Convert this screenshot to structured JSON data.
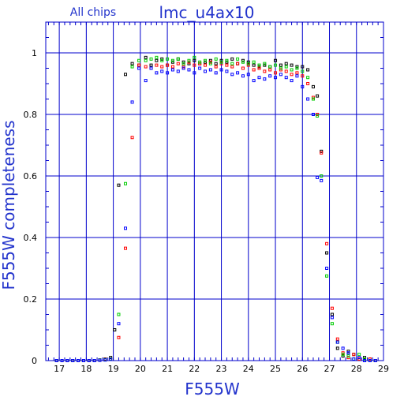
{
  "chart_data": {
    "type": "scatter",
    "title": "lmc_u4ax10",
    "subtitle": "All chips",
    "xlabel": "F555W",
    "ylabel": "F555W completeness",
    "xlim": [
      16.5,
      29
    ],
    "ylim": [
      0,
      1.1
    ],
    "xticks": [
      17,
      18,
      19,
      20,
      21,
      22,
      23,
      24,
      25,
      26,
      27,
      28,
      29
    ],
    "yticks": [
      0,
      0.2,
      0.4,
      0.6,
      0.8,
      1
    ],
    "ytick_labels": [
      "0",
      "0.2",
      "0.4",
      "0.6",
      "0.8",
      "1"
    ],
    "grid": true,
    "colors": {
      "axes": "#0000cc",
      "labels": "#2233cc"
    },
    "series": [
      {
        "color": "#000000",
        "points": [
          [
            16.9,
            0.0
          ],
          [
            17.1,
            0.0
          ],
          [
            17.3,
            0.0
          ],
          [
            17.5,
            0.0
          ],
          [
            17.7,
            0.0
          ],
          [
            17.9,
            0.0
          ],
          [
            18.1,
            0.0
          ],
          [
            18.3,
            0.0
          ],
          [
            18.5,
            0.002
          ],
          [
            18.7,
            0.005
          ],
          [
            18.9,
            0.01
          ],
          [
            19.05,
            0.1
          ],
          [
            19.2,
            0.57
          ],
          [
            19.45,
            0.93
          ],
          [
            19.7,
            0.965
          ],
          [
            19.95,
            0.96
          ],
          [
            20.2,
            0.985
          ],
          [
            20.4,
            0.96
          ],
          [
            20.6,
            0.975
          ],
          [
            20.8,
            0.98
          ],
          [
            21.0,
            0.96
          ],
          [
            21.2,
            0.97
          ],
          [
            21.4,
            0.98
          ],
          [
            21.6,
            0.97
          ],
          [
            21.8,
            0.965
          ],
          [
            22.0,
            0.975
          ],
          [
            22.2,
            0.965
          ],
          [
            22.4,
            0.97
          ],
          [
            22.6,
            0.975
          ],
          [
            22.8,
            0.965
          ],
          [
            23.0,
            0.975
          ],
          [
            23.2,
            0.97
          ],
          [
            23.4,
            0.98
          ],
          [
            23.6,
            0.965
          ],
          [
            23.8,
            0.975
          ],
          [
            24.0,
            0.97
          ],
          [
            24.2,
            0.96
          ],
          [
            24.4,
            0.955
          ],
          [
            24.6,
            0.96
          ],
          [
            24.8,
            0.955
          ],
          [
            25.0,
            0.975
          ],
          [
            25.2,
            0.96
          ],
          [
            25.4,
            0.965
          ],
          [
            25.6,
            0.96
          ],
          [
            25.8,
            0.955
          ],
          [
            26.0,
            0.955
          ],
          [
            26.2,
            0.945
          ],
          [
            26.4,
            0.89
          ],
          [
            26.55,
            0.86
          ],
          [
            26.7,
            0.68
          ],
          [
            26.9,
            0.35
          ],
          [
            27.1,
            0.15
          ],
          [
            27.3,
            0.04
          ],
          [
            27.5,
            0.015
          ],
          [
            27.7,
            0.03
          ],
          [
            27.9,
            0.02
          ],
          [
            28.1,
            0.005
          ],
          [
            28.3,
            0.01
          ],
          [
            28.5,
            0.005
          ],
          [
            28.7,
            0.0
          ]
        ]
      },
      {
        "color": "#ff0000",
        "points": [
          [
            16.9,
            0.0
          ],
          [
            17.1,
            0.0
          ],
          [
            17.3,
            0.0
          ],
          [
            17.5,
            0.0
          ],
          [
            17.7,
            0.0
          ],
          [
            17.9,
            0.0
          ],
          [
            18.1,
            0.0
          ],
          [
            18.3,
            0.0
          ],
          [
            18.5,
            0.002
          ],
          [
            18.7,
            0.004
          ],
          [
            18.9,
            0.005
          ],
          [
            19.2,
            0.075
          ],
          [
            19.45,
            0.365
          ],
          [
            19.7,
            0.725
          ],
          [
            19.95,
            0.96
          ],
          [
            20.2,
            0.955
          ],
          [
            20.4,
            0.95
          ],
          [
            20.6,
            0.96
          ],
          [
            20.8,
            0.955
          ],
          [
            21.0,
            0.96
          ],
          [
            21.2,
            0.955
          ],
          [
            21.4,
            0.965
          ],
          [
            21.6,
            0.955
          ],
          [
            21.8,
            0.97
          ],
          [
            22.0,
            0.96
          ],
          [
            22.2,
            0.965
          ],
          [
            22.4,
            0.96
          ],
          [
            22.6,
            0.97
          ],
          [
            22.8,
            0.955
          ],
          [
            23.0,
            0.965
          ],
          [
            23.2,
            0.96
          ],
          [
            23.4,
            0.955
          ],
          [
            23.6,
            0.965
          ],
          [
            23.8,
            0.95
          ],
          [
            24.0,
            0.96
          ],
          [
            24.2,
            0.945
          ],
          [
            24.4,
            0.95
          ],
          [
            24.6,
            0.94
          ],
          [
            24.8,
            0.945
          ],
          [
            25.0,
            0.935
          ],
          [
            25.2,
            0.945
          ],
          [
            25.4,
            0.94
          ],
          [
            25.6,
            0.93
          ],
          [
            25.8,
            0.935
          ],
          [
            26.0,
            0.925
          ],
          [
            26.2,
            0.9
          ],
          [
            26.4,
            0.855
          ],
          [
            26.55,
            0.8
          ],
          [
            26.7,
            0.675
          ],
          [
            26.9,
            0.38
          ],
          [
            27.1,
            0.17
          ],
          [
            27.3,
            0.07
          ],
          [
            27.5,
            0.025
          ],
          [
            27.7,
            0.01
          ],
          [
            27.9,
            0.02
          ],
          [
            28.1,
            0.005
          ],
          [
            28.3,
            0.0
          ],
          [
            28.5,
            0.005
          ],
          [
            28.7,
            0.0
          ]
        ]
      },
      {
        "color": "#00cc00",
        "points": [
          [
            16.9,
            0.0
          ],
          [
            17.1,
            0.0
          ],
          [
            17.3,
            0.0
          ],
          [
            17.5,
            0.0
          ],
          [
            17.7,
            0.0
          ],
          [
            17.9,
            0.0
          ],
          [
            18.1,
            0.0
          ],
          [
            18.3,
            0.0
          ],
          [
            18.5,
            0.002
          ],
          [
            18.7,
            0.003
          ],
          [
            18.9,
            0.005
          ],
          [
            19.2,
            0.15
          ],
          [
            19.45,
            0.575
          ],
          [
            19.7,
            0.955
          ],
          [
            19.95,
            0.975
          ],
          [
            20.2,
            0.975
          ],
          [
            20.4,
            0.98
          ],
          [
            20.6,
            0.985
          ],
          [
            20.8,
            0.975
          ],
          [
            21.0,
            0.98
          ],
          [
            21.2,
            0.975
          ],
          [
            21.4,
            0.98
          ],
          [
            21.6,
            0.965
          ],
          [
            21.8,
            0.975
          ],
          [
            22.0,
            0.985
          ],
          [
            22.2,
            0.97
          ],
          [
            22.4,
            0.975
          ],
          [
            22.6,
            0.965
          ],
          [
            22.8,
            0.98
          ],
          [
            23.0,
            0.97
          ],
          [
            23.2,
            0.975
          ],
          [
            23.4,
            0.965
          ],
          [
            23.6,
            0.98
          ],
          [
            23.8,
            0.97
          ],
          [
            24.0,
            0.965
          ],
          [
            24.2,
            0.97
          ],
          [
            24.4,
            0.96
          ],
          [
            24.6,
            0.965
          ],
          [
            24.8,
            0.955
          ],
          [
            25.0,
            0.96
          ],
          [
            25.2,
            0.95
          ],
          [
            25.4,
            0.955
          ],
          [
            25.6,
            0.945
          ],
          [
            25.8,
            0.95
          ],
          [
            26.0,
            0.94
          ],
          [
            26.2,
            0.92
          ],
          [
            26.4,
            0.85
          ],
          [
            26.55,
            0.795
          ],
          [
            26.7,
            0.6
          ],
          [
            26.9,
            0.275
          ],
          [
            27.1,
            0.12
          ],
          [
            27.3,
            0.06
          ],
          [
            27.5,
            0.02
          ],
          [
            27.7,
            0.015
          ],
          [
            27.9,
            0.005
          ],
          [
            28.1,
            0.02
          ],
          [
            28.3,
            0.005
          ],
          [
            28.5,
            0.0
          ],
          [
            28.7,
            0.0
          ]
        ]
      },
      {
        "color": "#0000ff",
        "points": [
          [
            16.9,
            0.0
          ],
          [
            17.1,
            0.0
          ],
          [
            17.3,
            0.0
          ],
          [
            17.5,
            0.0
          ],
          [
            17.7,
            0.0
          ],
          [
            17.9,
            0.0
          ],
          [
            18.1,
            0.0
          ],
          [
            18.3,
            0.0
          ],
          [
            18.5,
            0.001
          ],
          [
            18.7,
            0.002
          ],
          [
            18.9,
            0.004
          ],
          [
            19.2,
            0.12
          ],
          [
            19.45,
            0.43
          ],
          [
            19.7,
            0.84
          ],
          [
            19.95,
            0.95
          ],
          [
            20.2,
            0.91
          ],
          [
            20.4,
            0.95
          ],
          [
            20.6,
            0.935
          ],
          [
            20.8,
            0.94
          ],
          [
            21.0,
            0.935
          ],
          [
            21.2,
            0.945
          ],
          [
            21.4,
            0.94
          ],
          [
            21.6,
            0.95
          ],
          [
            21.8,
            0.945
          ],
          [
            22.0,
            0.935
          ],
          [
            22.2,
            0.95
          ],
          [
            22.4,
            0.94
          ],
          [
            22.6,
            0.945
          ],
          [
            22.8,
            0.935
          ],
          [
            23.0,
            0.945
          ],
          [
            23.2,
            0.94
          ],
          [
            23.4,
            0.93
          ],
          [
            23.6,
            0.935
          ],
          [
            23.8,
            0.925
          ],
          [
            24.0,
            0.93
          ],
          [
            24.2,
            0.91
          ],
          [
            24.4,
            0.92
          ],
          [
            24.6,
            0.915
          ],
          [
            24.8,
            0.925
          ],
          [
            25.0,
            0.92
          ],
          [
            25.2,
            0.93
          ],
          [
            25.4,
            0.92
          ],
          [
            25.6,
            0.91
          ],
          [
            25.8,
            0.925
          ],
          [
            26.0,
            0.89
          ],
          [
            26.2,
            0.85
          ],
          [
            26.4,
            0.8
          ],
          [
            26.55,
            0.595
          ],
          [
            26.7,
            0.585
          ],
          [
            26.9,
            0.3
          ],
          [
            27.1,
            0.14
          ],
          [
            27.3,
            0.06
          ],
          [
            27.5,
            0.04
          ],
          [
            27.7,
            0.025
          ],
          [
            27.9,
            0.005
          ],
          [
            28.1,
            0.01
          ],
          [
            28.3,
            0.0
          ],
          [
            28.5,
            0.0
          ],
          [
            28.7,
            0.0
          ]
        ]
      }
    ]
  }
}
